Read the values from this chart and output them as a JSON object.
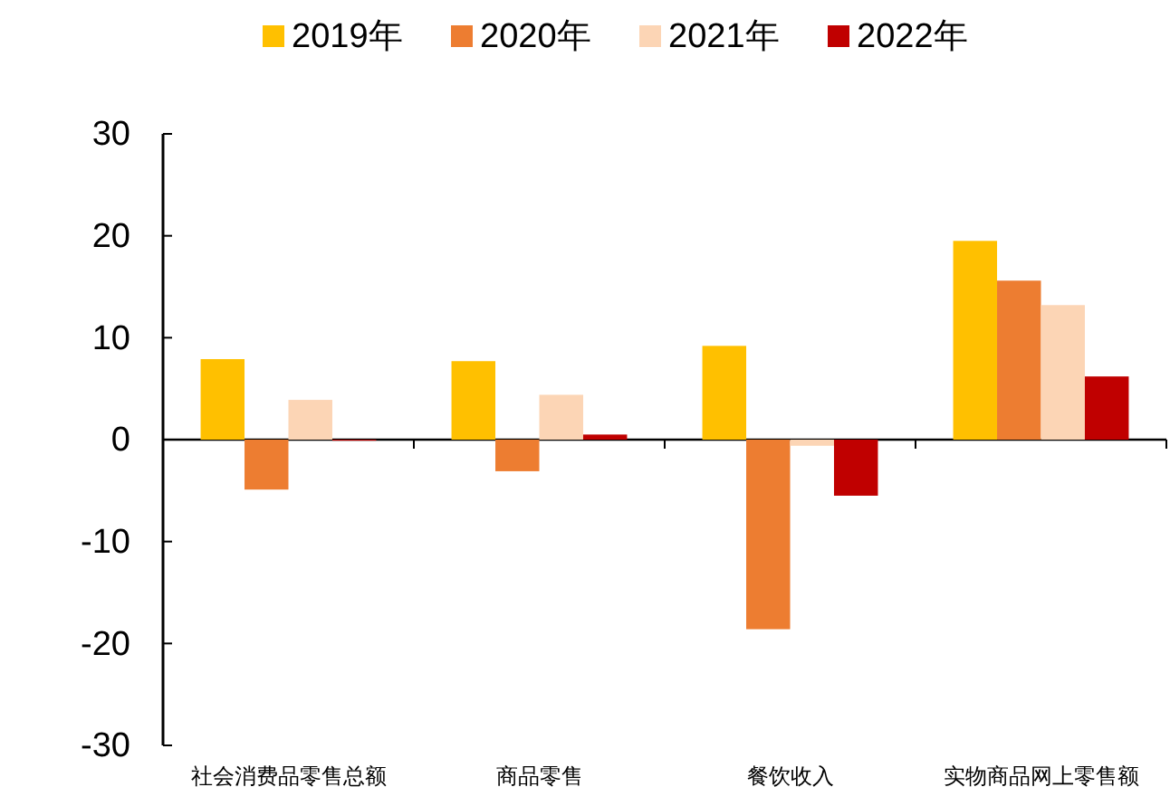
{
  "chart_data": {
    "type": "bar",
    "categories": [
      "社会消费品零售总额",
      "商品零售",
      "餐饮收入",
      "实物商品网上零售额"
    ],
    "series": [
      {
        "name": "2019年",
        "color": "#ffc000",
        "values": [
          7.9,
          7.7,
          9.2,
          19.5
        ]
      },
      {
        "name": "2020年",
        "color": "#ed7d31",
        "values": [
          -4.9,
          -3.1,
          -18.6,
          15.6
        ]
      },
      {
        "name": "2021年",
        "color": "#fcd5b5",
        "values": [
          3.9,
          4.4,
          -0.6,
          13.2
        ]
      },
      {
        "name": "2022年",
        "color": "#c00000",
        "values": [
          -0.1,
          0.5,
          -5.5,
          6.2
        ]
      }
    ],
    "ylim": [
      -30,
      30
    ],
    "yticks": [
      -30,
      -20,
      -10,
      0,
      10,
      20,
      30
    ],
    "legend": "top"
  }
}
